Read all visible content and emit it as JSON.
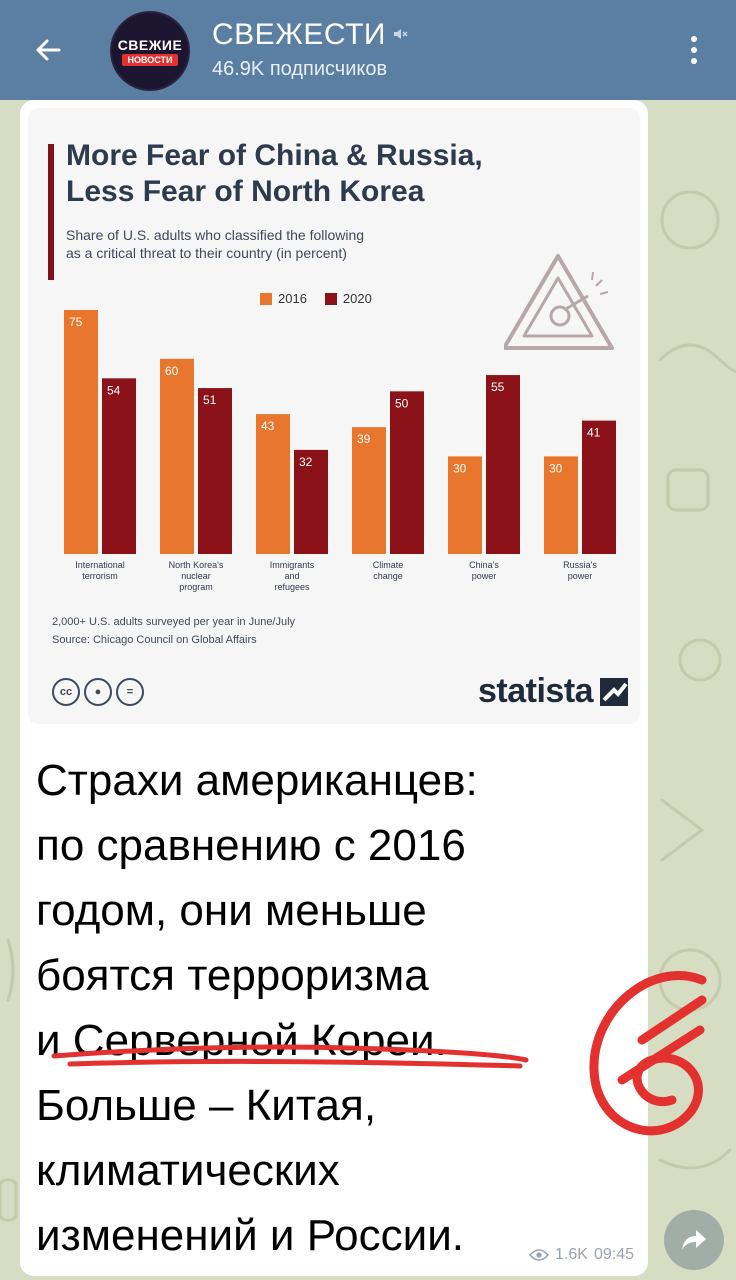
{
  "header": {
    "channel_name": "СВЕЖЕСТИ",
    "subscribers": "46.9K подписчиков",
    "avatar_line1": "СВЕЖИЕ",
    "avatar_line2": "НОВОСТИ",
    "icons": [
      "back-arrow-icon",
      "mute-icon",
      "more-vert-icon"
    ]
  },
  "post": {
    "infographic": {
      "title_line1": "More Fear of China & Russia,",
      "title_line2": "Less Fear of North Korea",
      "subtitle_line1": "Share of U.S. adults who classified the following",
      "subtitle_line2": "as a critical threat to their country (in percent)",
      "footnote1": "2,000+ U.S. adults surveyed per year in June/July",
      "footnote2": "Source: Chicago Council on Global Affairs",
      "brand": "statista",
      "cc_icons": [
        "cc",
        "by",
        "nd"
      ]
    },
    "text_lines": [
      "Страхи американцев:",
      "по сравнению с 2016",
      "годом, они меньше",
      "боятся терроризма",
      "и Серверной Кореи.",
      "Больше – Китая,",
      "климатических",
      "изменений и России."
    ],
    "views": "1.6K",
    "time": "09:45"
  },
  "chart_data": {
    "type": "bar",
    "title": "More Fear of China & Russia, Less Fear of North Korea",
    "subtitle": "Share of U.S. adults who classified the following as a critical threat to their country (in percent)",
    "categories": [
      [
        "International",
        "terrorism"
      ],
      [
        "North Korea's",
        "nuclear",
        "program"
      ],
      [
        "Immigrants",
        "and",
        "refugees"
      ],
      [
        "Climate",
        "change"
      ],
      [
        "China's",
        "power"
      ],
      [
        "Russia's",
        "power"
      ]
    ],
    "series": [
      {
        "name": "2016",
        "color": "#e8762c",
        "values": [
          75,
          60,
          43,
          39,
          30,
          30
        ]
      },
      {
        "name": "2020",
        "color": "#8b1219",
        "values": [
          54,
          51,
          32,
          50,
          55,
          41
        ]
      }
    ],
    "ylim": [
      0,
      75
    ],
    "grid": false,
    "legend": "top"
  },
  "colors": {
    "header_bg": "#5a7fa3",
    "accent_red": "#e2312f",
    "bar_2016": "#e8762c",
    "bar_2020": "#8b1219"
  }
}
